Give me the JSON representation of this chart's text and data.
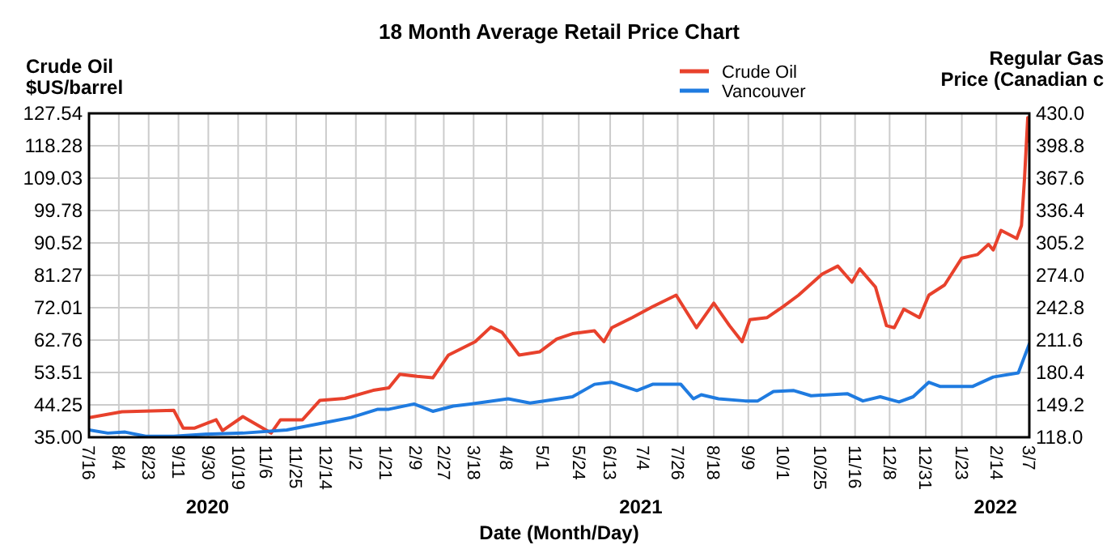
{
  "chart_data": {
    "type": "line",
    "title": "18 Month Average Retail Price Chart",
    "xlabel": "Date (Month/Day)",
    "ylabel": "Crude Oil\n$US/barrel",
    "y2label": "Regular Gas\nPrice (Canadian c",
    "grid": true,
    "legend": "top",
    "marker": "none",
    "line_style": "solid",
    "xlim": [
      "2020-07-16",
      "2022-03-07"
    ],
    "xticks": [
      {
        "value": "2020-07-16",
        "label": "7/16"
      },
      {
        "value": "2020-08-04",
        "label": "8/4"
      },
      {
        "value": "2020-08-23",
        "label": "8/23"
      },
      {
        "value": "2020-09-11",
        "label": "9/11"
      },
      {
        "value": "2020-09-30",
        "label": "9/30"
      },
      {
        "value": "2020-10-19",
        "label": "10/19"
      },
      {
        "value": "2020-11-06",
        "label": "11/6"
      },
      {
        "value": "2020-11-25",
        "label": "11/25"
      },
      {
        "value": "2020-12-14",
        "label": "12/14"
      },
      {
        "value": "2021-01-02",
        "label": "1/2"
      },
      {
        "value": "2021-01-21",
        "label": "1/21"
      },
      {
        "value": "2021-02-09",
        "label": "2/9"
      },
      {
        "value": "2021-02-27",
        "label": "2/27"
      },
      {
        "value": "2021-03-18",
        "label": "3/18"
      },
      {
        "value": "2021-04-08",
        "label": "4/8"
      },
      {
        "value": "2021-05-01",
        "label": "5/1"
      },
      {
        "value": "2021-05-24",
        "label": "5/24"
      },
      {
        "value": "2021-06-13",
        "label": "6/13"
      },
      {
        "value": "2021-07-04",
        "label": "7/4"
      },
      {
        "value": "2021-07-26",
        "label": "7/26"
      },
      {
        "value": "2021-08-18",
        "label": "8/18"
      },
      {
        "value": "2021-09-09",
        "label": "9/9"
      },
      {
        "value": "2021-10-01",
        "label": "10/1"
      },
      {
        "value": "2021-10-25",
        "label": "10/25"
      },
      {
        "value": "2021-11-16",
        "label": "11/16"
      },
      {
        "value": "2021-12-08",
        "label": "12/8"
      },
      {
        "value": "2021-12-31",
        "label": "12/31"
      },
      {
        "value": "2022-01-23",
        "label": "1/23"
      },
      {
        "value": "2022-02-14",
        "label": "2/14"
      },
      {
        "value": "2022-03-07",
        "label": "3/7"
      }
    ],
    "ylim": [
      35,
      127.54
    ],
    "yticks": [
      {
        "value": 35,
        "label": "35.00"
      },
      44.25,
      53.51,
      62.76,
      72.01,
      81.27,
      90.52,
      99.78,
      109.03,
      118.28,
      127.54
    ],
    "y2lim": [
      118,
      430
    ],
    "y2ticks": [
      {
        "value": 118,
        "label": "118.0"
      },
      149.2,
      180.4,
      211.6,
      242.8,
      {
        "value": 274,
        "label": "274.0"
      },
      305.2,
      336.4,
      367.6,
      398.8,
      {
        "value": 430,
        "label": "430.0"
      }
    ],
    "annotations": [
      "2020",
      "2021",
      "2022"
    ],
    "series": [
      {
        "name": "Crude Oil",
        "color": "#e8412c",
        "x": [
          "2020-07-16",
          "2020-08-06",
          "2020-09-08",
          "2020-09-14",
          "2020-09-21",
          "2020-10-05",
          "2020-10-09",
          "2020-10-22",
          "2020-11-09",
          "2020-11-15",
          "2020-11-29",
          "2020-12-10",
          "2020-12-26",
          "2021-01-13",
          "2021-01-23",
          "2021-01-30",
          "2021-02-10",
          "2021-02-20",
          "2021-03-02",
          "2021-03-19",
          "2021-03-29",
          "2021-04-05",
          "2021-04-16",
          "2021-04-29",
          "2021-05-10",
          "2021-05-20",
          "2021-06-03",
          "2021-06-09",
          "2021-06-14",
          "2021-06-27",
          "2021-07-10",
          "2021-07-25",
          "2021-08-07",
          "2021-08-18",
          "2021-08-28",
          "2021-09-05",
          "2021-09-10",
          "2021-09-21",
          "2021-10-01",
          "2021-10-11",
          "2021-10-26",
          "2021-11-05",
          "2021-11-14",
          "2021-11-19",
          "2021-11-29",
          "2021-12-06",
          "2021-12-11",
          "2021-12-17",
          "2021-12-27",
          "2022-01-02",
          "2022-01-12",
          "2022-01-23",
          "2022-02-02",
          "2022-02-09",
          "2022-02-12",
          "2022-02-17",
          "2022-02-27",
          "2022-03-02",
          "2022-03-04",
          "2022-03-06",
          "2022-03-07"
        ],
        "values": [
          40.6,
          42.3,
          42.7,
          37.6,
          37.6,
          40,
          36.9,
          40.9,
          36.2,
          40,
          40,
          45.5,
          46.1,
          48.4,
          49.1,
          53,
          52.4,
          52,
          58.5,
          62.3,
          66.5,
          65,
          58.5,
          59.4,
          63.1,
          64.6,
          65.4,
          62.3,
          66.3,
          69.2,
          72.3,
          75.6,
          66.3,
          73.3,
          66.9,
          62.3,
          68.6,
          69.2,
          72.3,
          75.6,
          81.6,
          83.9,
          79.3,
          83.1,
          77.9,
          66.9,
          66.3,
          71.6,
          69.2,
          75.6,
          78.5,
          86.2,
          87.2,
          90.1,
          88.5,
          94.1,
          91.8,
          95.5,
          109.4,
          126.3,
          119.5
        ]
      },
      {
        "name": "Vancouver",
        "color": "#1f7be0",
        "axis": "y2",
        "x": [
          "2020-07-16",
          "2020-07-28",
          "2020-08-08",
          "2020-08-21",
          "2020-09-08",
          "2020-09-28",
          "2020-10-22",
          "2020-11-19",
          "2020-12-13",
          "2020-12-30",
          "2021-01-16",
          "2021-01-23",
          "2021-02-08",
          "2021-02-20",
          "2021-03-05",
          "2021-03-16",
          "2021-04-09",
          "2021-04-23",
          "2021-05-20",
          "2021-06-03",
          "2021-06-14",
          "2021-06-30",
          "2021-07-10",
          "2021-07-28",
          "2021-08-05",
          "2021-08-10",
          "2021-08-21",
          "2021-09-07",
          "2021-09-15",
          "2021-09-25",
          "2021-10-08",
          "2021-10-19",
          "2021-11-11",
          "2021-11-21",
          "2021-12-02",
          "2021-12-14",
          "2021-12-23",
          "2022-01-02",
          "2022-01-09",
          "2022-01-30",
          "2022-02-12",
          "2022-02-28",
          "2022-03-07"
        ],
        "values": [
          125,
          122,
          123,
          119,
          119,
          121,
          122,
          125,
          132,
          137,
          145,
          145,
          150,
          143,
          148,
          150,
          155,
          151,
          157,
          169,
          171,
          163,
          169,
          169,
          155,
          159,
          155,
          153,
          153,
          162,
          163,
          158,
          160,
          153,
          157,
          152,
          157,
          171,
          167,
          167,
          176,
          180,
          208
        ]
      }
    ]
  }
}
